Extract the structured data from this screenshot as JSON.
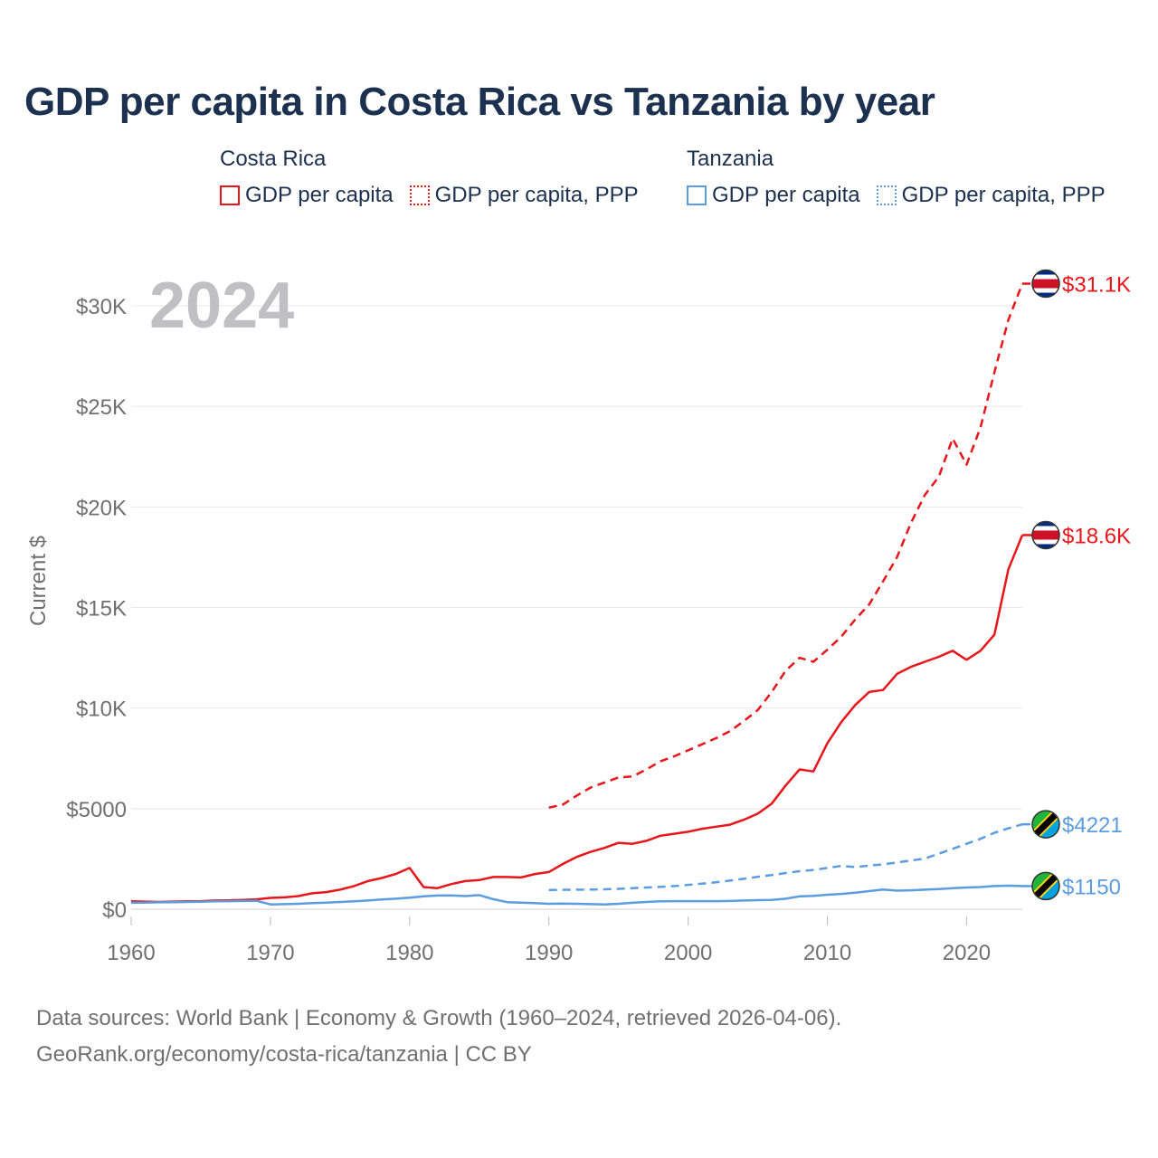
{
  "page": {
    "title": "GDP per capita in Costa Rica vs Tanzania by year",
    "footer_line1": "Data sources: World Bank | Economy & Growth (1960–2024, retrieved 2026-04-06).",
    "footer_line2": "GeoRank.org/economy/costa-rica/tanzania | CC BY"
  },
  "legend": {
    "groups": [
      {
        "name": "Costa Rica",
        "color": "#e8161b",
        "items": [
          {
            "label": "GDP per capita",
            "style": "solid"
          },
          {
            "label": "GDP per capita, PPP",
            "style": "dotted"
          }
        ]
      },
      {
        "name": "Tanzania",
        "color": "#5b9de0",
        "items": [
          {
            "label": "GDP per capita",
            "style": "solid"
          },
          {
            "label": "GDP per capita, PPP",
            "style": "dotted"
          }
        ]
      }
    ]
  },
  "chart_data": {
    "type": "line",
    "year_label": "2024",
    "ylabel": "Current $",
    "xlabel": "",
    "xlim": [
      1960,
      2024
    ],
    "ylim": [
      0,
      32000
    ],
    "x_ticks": [
      1960,
      1970,
      1980,
      1990,
      2000,
      2010,
      2020
    ],
    "y_ticks": [
      {
        "value": 0,
        "label": "$0"
      },
      {
        "value": 5000,
        "label": "$5000"
      },
      {
        "value": 10000,
        "label": "$10K"
      },
      {
        "value": 15000,
        "label": "$15K"
      },
      {
        "value": 20000,
        "label": "$20K"
      },
      {
        "value": 25000,
        "label": "$25K"
      },
      {
        "value": 30000,
        "label": "$30K"
      }
    ],
    "series": [
      {
        "name": "Costa Rica GDP per capita, PPP",
        "country": "Costa Rica",
        "color": "#e8161b",
        "dash": "dashed",
        "end_label": "$31.1K",
        "flag": "costa-rica",
        "x": [
          1990,
          1991,
          1992,
          1993,
          1994,
          1995,
          1996,
          1997,
          1998,
          1999,
          2000,
          2001,
          2002,
          2003,
          2004,
          2005,
          2006,
          2007,
          2008,
          2009,
          2010,
          2011,
          2012,
          2013,
          2014,
          2015,
          2016,
          2017,
          2018,
          2019,
          2020,
          2021,
          2022,
          2023,
          2024
        ],
        "values": [
          5050,
          5200,
          5650,
          6050,
          6300,
          6550,
          6600,
          6950,
          7350,
          7600,
          7900,
          8200,
          8500,
          8850,
          9350,
          9900,
          10800,
          11850,
          12500,
          12300,
          12900,
          13550,
          14400,
          15150,
          16300,
          17500,
          19200,
          20600,
          21500,
          23400,
          22100,
          23950,
          26700,
          29300,
          31100
        ]
      },
      {
        "name": "Costa Rica GDP per capita",
        "country": "Costa Rica",
        "color": "#e8161b",
        "dash": "solid",
        "end_label": "$18.6K",
        "flag": "costa-rica",
        "x": [
          1960,
          1961,
          1962,
          1963,
          1964,
          1965,
          1966,
          1967,
          1968,
          1969,
          1970,
          1971,
          1972,
          1973,
          1974,
          1975,
          1976,
          1977,
          1978,
          1979,
          1980,
          1981,
          1982,
          1983,
          1984,
          1985,
          1986,
          1987,
          1988,
          1989,
          1990,
          1991,
          1992,
          1993,
          1994,
          1995,
          1996,
          1997,
          1998,
          1999,
          2000,
          2001,
          2002,
          2003,
          2004,
          2005,
          2006,
          2007,
          2008,
          2009,
          2010,
          2011,
          2012,
          2013,
          2014,
          2015,
          2016,
          2017,
          2018,
          2019,
          2020,
          2021,
          2022,
          2023,
          2024
        ],
        "values": [
          390,
          380,
          360,
          380,
          390,
          400,
          430,
          440,
          460,
          490,
          560,
          590,
          650,
          790,
          850,
          970,
          1150,
          1400,
          1550,
          1750,
          2050,
          1100,
          1050,
          1250,
          1400,
          1450,
          1600,
          1600,
          1580,
          1750,
          1850,
          2250,
          2600,
          2850,
          3050,
          3300,
          3250,
          3400,
          3650,
          3750,
          3850,
          4000,
          4100,
          4200,
          4450,
          4750,
          5250,
          6150,
          6950,
          6850,
          8250,
          9300,
          10150,
          10800,
          10900,
          11700,
          12050,
          12300,
          12550,
          12850,
          12400,
          12850,
          13650,
          16900,
          18600
        ]
      },
      {
        "name": "Tanzania GDP per capita, PPP",
        "country": "Tanzania",
        "color": "#5b9de0",
        "dash": "dashed",
        "end_label": "$4221",
        "flag": "tanzania",
        "x": [
          1990,
          1991,
          1992,
          1993,
          1994,
          1995,
          1996,
          1997,
          1998,
          1999,
          2000,
          2001,
          2002,
          2003,
          2004,
          2005,
          2006,
          2007,
          2008,
          2009,
          2010,
          2011,
          2012,
          2013,
          2014,
          2015,
          2016,
          2017,
          2018,
          2019,
          2020,
          2021,
          2022,
          2023,
          2024
        ],
        "values": [
          960,
          965,
          970,
          975,
          990,
          1010,
          1050,
          1080,
          1110,
          1150,
          1210,
          1270,
          1340,
          1420,
          1510,
          1610,
          1700,
          1800,
          1890,
          1950,
          2050,
          2150,
          2100,
          2170,
          2230,
          2320,
          2420,
          2520,
          2760,
          3000,
          3250,
          3500,
          3800,
          4020,
          4221
        ]
      },
      {
        "name": "Tanzania GDP per capita",
        "country": "Tanzania",
        "color": "#5b9de0",
        "dash": "solid",
        "end_label": "$1150",
        "flag": "tanzania",
        "x": [
          1960,
          1961,
          1962,
          1963,
          1964,
          1965,
          1966,
          1967,
          1968,
          1969,
          1970,
          1971,
          1972,
          1973,
          1974,
          1975,
          1976,
          1977,
          1978,
          1979,
          1980,
          1981,
          1982,
          1983,
          1984,
          1985,
          1986,
          1987,
          1988,
          1989,
          1990,
          1991,
          1992,
          1993,
          1994,
          1995,
          1996,
          1997,
          1998,
          1999,
          2000,
          2001,
          2002,
          2003,
          2004,
          2005,
          2006,
          2007,
          2008,
          2009,
          2010,
          2011,
          2012,
          2013,
          2014,
          2015,
          2016,
          2017,
          2018,
          2019,
          2020,
          2021,
          2022,
          2023,
          2024
        ],
        "values": [
          320,
          330,
          340,
          350,
          360,
          370,
          390,
          400,
          410,
          420,
          240,
          250,
          270,
          300,
          330,
          360,
          390,
          430,
          480,
          520,
          570,
          640,
          680,
          690,
          650,
          700,
          500,
          350,
          330,
          300,
          270,
          280,
          270,
          250,
          240,
          270,
          320,
          360,
          390,
          400,
          400,
          400,
          400,
          410,
          430,
          450,
          460,
          520,
          640,
          660,
          720,
          760,
          820,
          900,
          980,
          920,
          940,
          970,
          1000,
          1050,
          1080,
          1100,
          1150,
          1170,
          1150
        ]
      }
    ]
  }
}
